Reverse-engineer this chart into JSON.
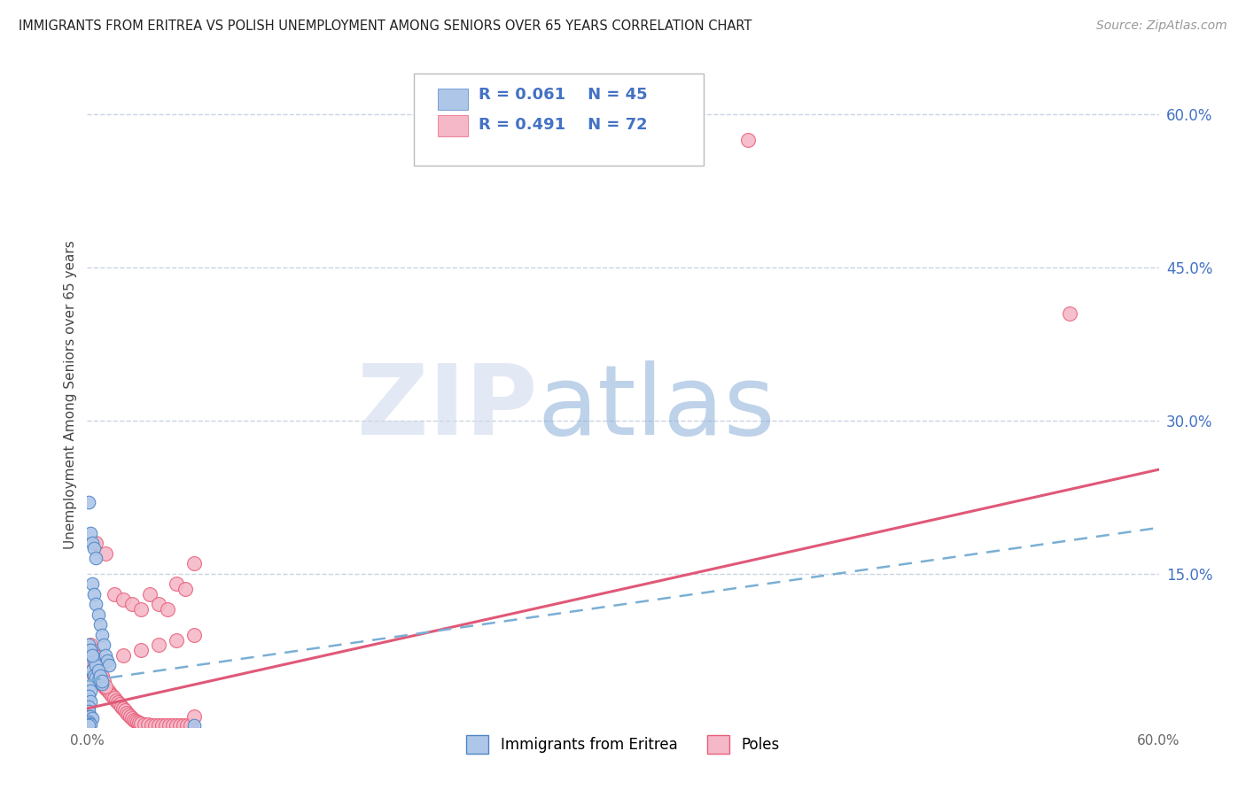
{
  "title": "IMMIGRANTS FROM ERITREA VS POLISH UNEMPLOYMENT AMONG SENIORS OVER 65 YEARS CORRELATION CHART",
  "source": "Source: ZipAtlas.com",
  "ylabel": "Unemployment Among Seniors over 65 years",
  "xlim": [
    0.0,
    0.6
  ],
  "ylim": [
    0.0,
    0.65
  ],
  "ytick_labels_right": [
    "60.0%",
    "45.0%",
    "30.0%",
    "15.0%"
  ],
  "ytick_vals_right": [
    0.6,
    0.45,
    0.3,
    0.15
  ],
  "legend_labels": [
    "Immigrants from Eritrea",
    "Poles"
  ],
  "blue_R": "R = 0.061",
  "blue_N": "N = 45",
  "pink_R": "R = 0.491",
  "pink_N": "N = 72",
  "blue_color": "#aec6e8",
  "pink_color": "#f5b8c8",
  "blue_edge": "#4f86c6",
  "pink_edge": "#e8607a",
  "blue_line_color": "#7aafd4",
  "pink_line_color": "#e05878",
  "grid_color": "#c8d4e4",
  "background_color": "#ffffff",
  "title_color": "#222222",
  "right_label_color": "#4472c4",
  "blue_scatter_x": [
    0.003,
    0.004,
    0.005,
    0.006,
    0.007,
    0.008,
    0.009,
    0.01,
    0.011,
    0.012,
    0.003,
    0.004,
    0.005,
    0.006,
    0.007,
    0.008,
    0.002,
    0.003,
    0.004,
    0.005,
    0.002,
    0.003,
    0.004,
    0.005,
    0.006,
    0.007,
    0.008,
    0.001,
    0.002,
    0.003,
    0.001,
    0.002,
    0.001,
    0.002,
    0.001,
    0.001,
    0.001,
    0.002,
    0.003,
    0.001,
    0.001,
    0.002,
    0.001,
    0.06,
    0.001
  ],
  "blue_scatter_y": [
    0.14,
    0.13,
    0.12,
    0.11,
    0.1,
    0.09,
    0.08,
    0.07,
    0.065,
    0.06,
    0.055,
    0.05,
    0.048,
    0.046,
    0.044,
    0.042,
    0.19,
    0.18,
    0.175,
    0.165,
    0.075,
    0.07,
    0.065,
    0.06,
    0.055,
    0.05,
    0.045,
    0.08,
    0.075,
    0.07,
    0.04,
    0.035,
    0.03,
    0.025,
    0.02,
    0.015,
    0.01,
    0.01,
    0.008,
    0.005,
    0.003,
    0.002,
    0.22,
    0.001,
    0.001
  ],
  "pink_scatter_x": [
    0.002,
    0.003,
    0.004,
    0.005,
    0.006,
    0.007,
    0.008,
    0.009,
    0.01,
    0.011,
    0.012,
    0.013,
    0.014,
    0.015,
    0.016,
    0.017,
    0.018,
    0.019,
    0.02,
    0.021,
    0.022,
    0.023,
    0.024,
    0.025,
    0.026,
    0.027,
    0.028,
    0.029,
    0.03,
    0.032,
    0.034,
    0.036,
    0.038,
    0.04,
    0.042,
    0.044,
    0.046,
    0.048,
    0.05,
    0.052,
    0.054,
    0.056,
    0.058,
    0.06,
    0.002,
    0.003,
    0.004,
    0.005,
    0.006,
    0.007,
    0.008,
    0.009,
    0.01,
    0.015,
    0.02,
    0.025,
    0.03,
    0.035,
    0.04,
    0.045,
    0.05,
    0.055,
    0.06,
    0.37,
    0.55,
    0.06,
    0.05,
    0.04,
    0.03,
    0.02,
    0.01,
    0.005
  ],
  "pink_scatter_y": [
    0.06,
    0.055,
    0.05,
    0.048,
    0.046,
    0.044,
    0.042,
    0.04,
    0.038,
    0.036,
    0.034,
    0.032,
    0.03,
    0.028,
    0.026,
    0.024,
    0.022,
    0.02,
    0.018,
    0.016,
    0.014,
    0.012,
    0.01,
    0.008,
    0.007,
    0.006,
    0.005,
    0.004,
    0.003,
    0.002,
    0.002,
    0.001,
    0.001,
    0.001,
    0.001,
    0.001,
    0.001,
    0.001,
    0.001,
    0.001,
    0.001,
    0.001,
    0.001,
    0.01,
    0.08,
    0.075,
    0.07,
    0.065,
    0.06,
    0.055,
    0.05,
    0.045,
    0.04,
    0.13,
    0.125,
    0.12,
    0.115,
    0.13,
    0.12,
    0.115,
    0.14,
    0.135,
    0.16,
    0.575,
    0.405,
    0.09,
    0.085,
    0.08,
    0.075,
    0.07,
    0.17,
    0.18
  ]
}
